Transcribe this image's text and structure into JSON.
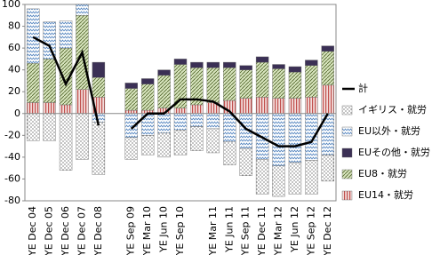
{
  "chart_data": {
    "type": "bar",
    "categories": [
      "YE Dec 04",
      "YE Dec 05",
      "YE Dec 06",
      "YE Dec 07",
      "YE Dec 08",
      null,
      "YE Sep 09",
      "YE Mar 10",
      "YE Jun 10",
      "YE Sep 10",
      null,
      "YE Mar 11",
      "YE Jun 11",
      "YE Sep 11",
      "YE Dec 11",
      "YE Mar 12",
      "YE Jun 12",
      "YE Sep 12",
      "YE Dec 12"
    ],
    "series": [
      {
        "name": "EU14・就労",
        "color": "#c0504d",
        "values": [
          10,
          10,
          8,
          22,
          15,
          null,
          3,
          3,
          5,
          5,
          8,
          10,
          12,
          14,
          15,
          14,
          14,
          15,
          26
        ]
      },
      {
        "name": "EU8・就労",
        "color": "#9bbb59",
        "values": [
          36,
          40,
          52,
          68,
          18,
          null,
          20,
          24,
          30,
          40,
          34,
          32,
          30,
          26,
          32,
          27,
          24,
          29,
          31
        ]
      },
      {
        "name": "EUその他・就労",
        "color": "#3b3055",
        "values": [
          0,
          0,
          0,
          0,
          14,
          null,
          5,
          5,
          5,
          5,
          5,
          5,
          5,
          4,
          5,
          4,
          5,
          5,
          5
        ]
      },
      {
        "name": "EU以外・就労",
        "color": "#4f81bd",
        "values": [
          50,
          34,
          25,
          10,
          -8,
          null,
          -22,
          -20,
          -18,
          -15,
          -12,
          -14,
          -26,
          -32,
          -42,
          -48,
          -45,
          -43,
          -38
        ]
      },
      {
        "name": "イギリス・就労",
        "color": "#7f7f7f",
        "values": [
          -25,
          -25,
          -52,
          -42,
          -48,
          null,
          -20,
          -18,
          -22,
          -23,
          -22,
          -22,
          -21,
          -25,
          -32,
          -28,
          -29,
          -31,
          -24
        ]
      },
      {
        "name": "計",
        "type": "line",
        "color": "#000000",
        "values": [
          70,
          62,
          27,
          56,
          -11,
          null,
          -14,
          0,
          0,
          13,
          13,
          11,
          2,
          -14,
          -22,
          -30,
          -30,
          -26,
          0
        ]
      }
    ],
    "ylim": [
      -80,
      100
    ],
    "yticks": [
      -80,
      -60,
      -40,
      -20,
      0,
      20,
      40,
      60,
      80,
      100
    ],
    "legend": "right"
  }
}
